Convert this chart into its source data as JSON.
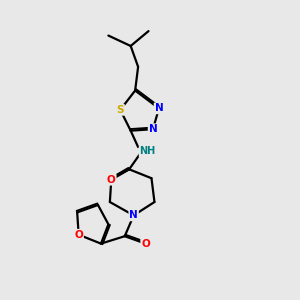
{
  "background_color": "#e8e8e8",
  "S_color": "#ccaa00",
  "N_color": "#0000ff",
  "O_color": "#ff0000",
  "NH_color": "#008080",
  "bond_color": "#000000",
  "bond_lw": 1.6,
  "dbo": 0.055,
  "figsize": [
    3.0,
    3.0
  ],
  "dpi": 100,
  "xlim": [
    2.5,
    8.5
  ],
  "ylim": [
    0.5,
    10.5
  ]
}
